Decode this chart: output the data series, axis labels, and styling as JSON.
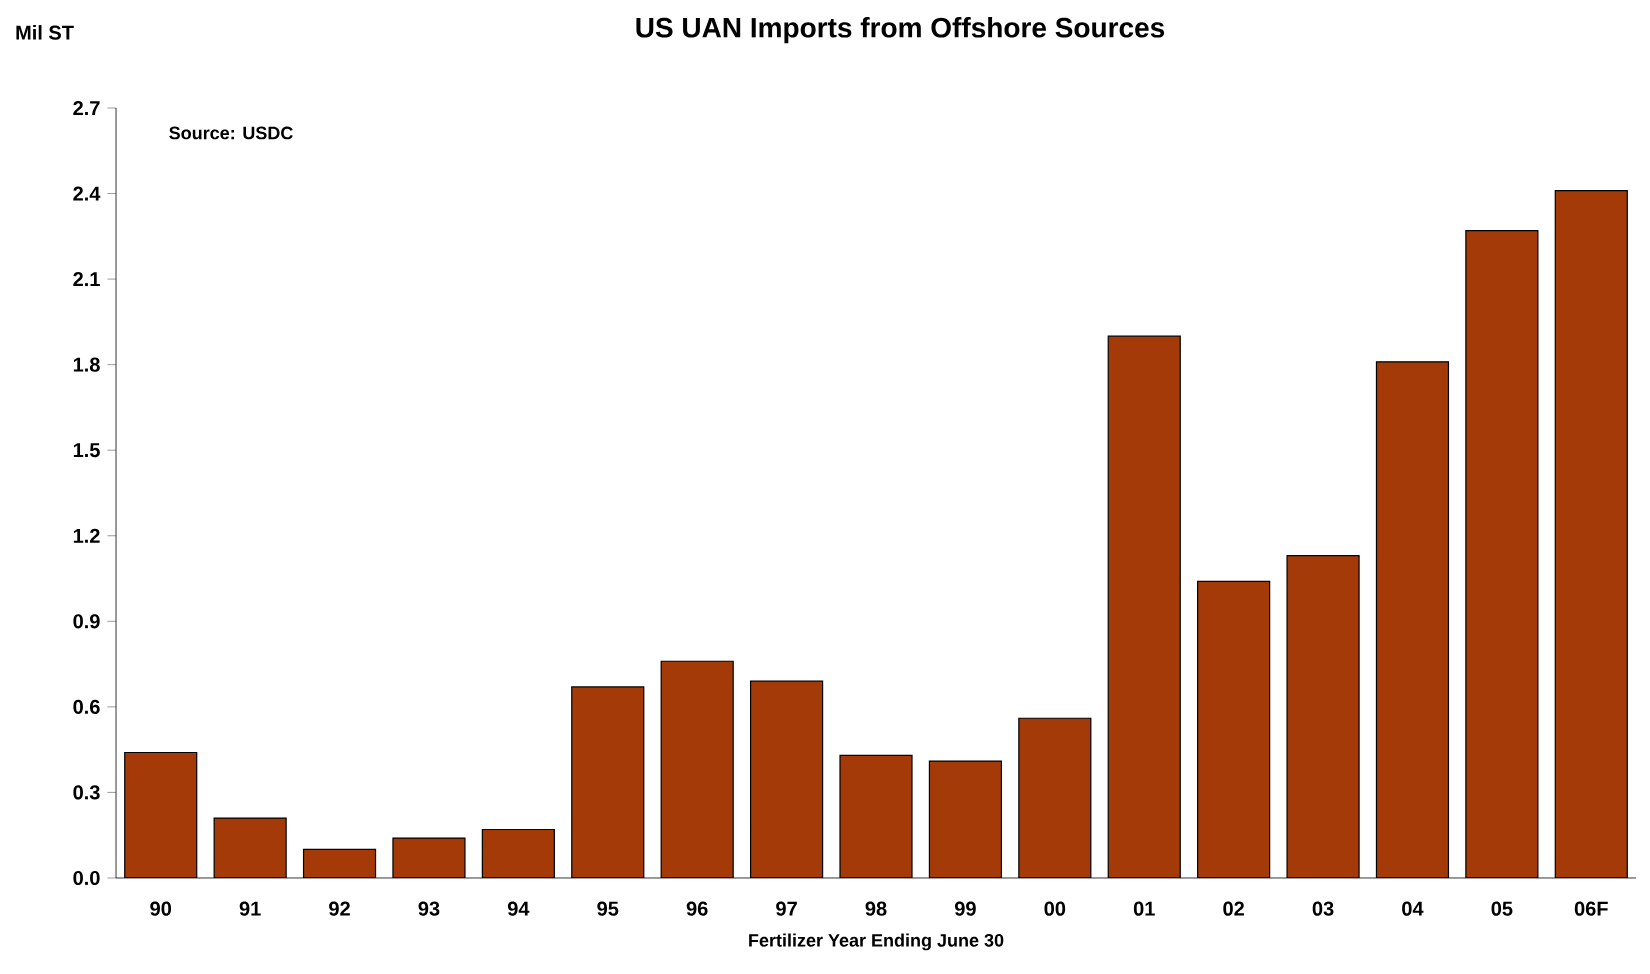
{
  "chart_data": {
    "type": "bar",
    "title": "US UAN Imports from Offshore Sources",
    "ylabel": "Mil ST",
    "xlabel": "Fertilizer Year Ending June 30",
    "annotations": [
      "Source: USDC"
    ],
    "categories": [
      "90",
      "91",
      "92",
      "93",
      "94",
      "95",
      "96",
      "97",
      "98",
      "99",
      "00",
      "01",
      "02",
      "03",
      "04",
      "05",
      "06F"
    ],
    "values": [
      0.44,
      0.21,
      0.1,
      0.14,
      0.17,
      0.67,
      0.76,
      0.69,
      0.43,
      0.41,
      0.56,
      1.9,
      1.04,
      1.13,
      1.81,
      2.27,
      2.41
    ],
    "color": "#a33a08",
    "ylim": [
      0,
      2.7
    ],
    "yticks": [
      {
        "value": 0,
        "label": "0.0"
      },
      0.3,
      0.6,
      0.9,
      1.2,
      1.5,
      1.8,
      2.1,
      2.4,
      2.7
    ],
    "grid": false
  }
}
